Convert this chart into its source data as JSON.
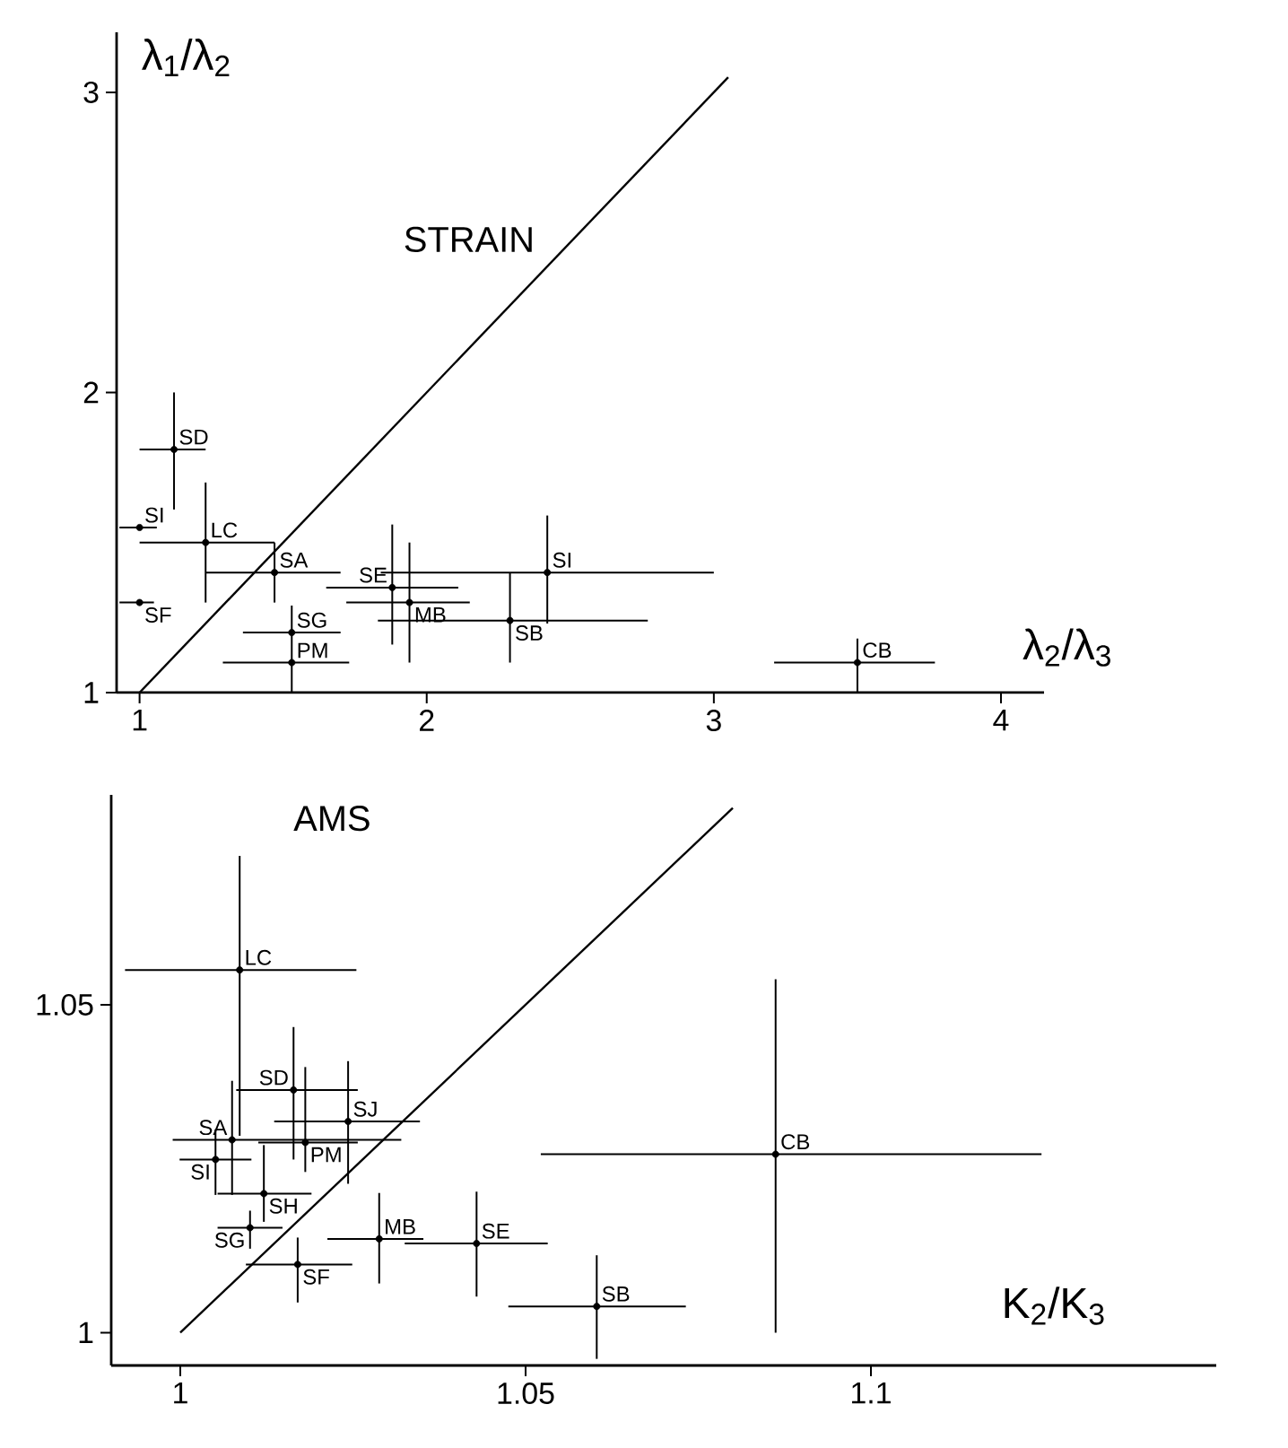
{
  "chart_data": [
    {
      "type": "scatter",
      "title": "STRAIN",
      "xlabel": "λ$_{2}$/λ$_{3}$",
      "ylabel": "λ$_{1}$/λ$_{2}$",
      "xlim": [
        0.92,
        4.15
      ],
      "ylim": [
        1,
        3.2
      ],
      "xticks": [
        1,
        2,
        3,
        4
      ],
      "yticks": [
        1,
        2,
        3
      ],
      "series": [
        {
          "type": "line",
          "marker": "none",
          "color": "#000000",
          "x": [
            1,
            3.05
          ],
          "values": [
            1,
            3.05
          ]
        },
        {
          "name": "SD",
          "marker": "circle",
          "color": "#000000",
          "x": [
            1.12
          ],
          "values": [
            1.81
          ],
          "xerrors": [
            [
              1.0,
              1.23
            ]
          ],
          "errors": [
            [
              1.61,
              2.0
            ]
          ]
        },
        {
          "name": "SI",
          "marker": "circle",
          "color": "#000000",
          "x": [
            1.0
          ],
          "values": [
            1.55
          ],
          "xerrors": [
            [
              0.93,
              1.06
            ]
          ],
          "errors": [
            null
          ]
        },
        {
          "name": "LC",
          "marker": "circle",
          "color": "#000000",
          "x": [
            1.23
          ],
          "values": [
            1.5
          ],
          "xerrors": [
            [
              1.0,
              1.47
            ]
          ],
          "errors": [
            [
              1.3,
              1.7
            ]
          ]
        },
        {
          "name": "SA",
          "marker": "circle",
          "color": "#000000",
          "x": [
            1.47
          ],
          "values": [
            1.4
          ],
          "xerrors": [
            [
              1.23,
              1.7
            ]
          ],
          "errors": [
            [
              1.3,
              1.5
            ]
          ]
        },
        {
          "name": "SF",
          "marker": "circle",
          "color": "#000000",
          "x": [
            1.0
          ],
          "values": [
            1.3
          ],
          "xerrors": [
            [
              0.93,
              1.05
            ]
          ],
          "errors": [
            null
          ]
        },
        {
          "name": "SE",
          "marker": "circle",
          "color": "#000000",
          "x": [
            1.88
          ],
          "values": [
            1.35
          ],
          "xerrors": [
            [
              1.65,
              2.11
            ]
          ],
          "errors": [
            [
              1.16,
              1.56
            ]
          ]
        },
        {
          "name": "MB",
          "marker": "circle",
          "color": "#000000",
          "x": [
            1.94
          ],
          "values": [
            1.3
          ],
          "xerrors": [
            [
              1.72,
              2.15
            ]
          ],
          "errors": [
            [
              1.1,
              1.5
            ]
          ]
        },
        {
          "name": "SI",
          "marker": "circle",
          "color": "#000000",
          "x": [
            2.42
          ],
          "values": [
            1.4
          ],
          "xerrors": [
            [
              1.84,
              3.0
            ]
          ],
          "errors": [
            [
              1.23,
              1.59
            ]
          ]
        },
        {
          "name": "SB",
          "marker": "circle",
          "color": "#000000",
          "x": [
            2.29
          ],
          "values": [
            1.24
          ],
          "xerrors": [
            [
              1.83,
              2.77
            ]
          ],
          "errors": [
            [
              1.1,
              1.4
            ]
          ]
        },
        {
          "name": "SG",
          "marker": "circle",
          "color": "#000000",
          "x": [
            1.53
          ],
          "values": [
            1.2
          ],
          "xerrors": [
            [
              1.36,
              1.7
            ]
          ],
          "errors": [
            [
              1.2,
              1.29
            ]
          ]
        },
        {
          "name": "PM",
          "marker": "circle",
          "color": "#000000",
          "x": [
            1.53
          ],
          "values": [
            1.1
          ],
          "xerrors": [
            [
              1.29,
              1.73
            ]
          ],
          "errors": [
            [
              1.0,
              1.2
            ]
          ]
        },
        {
          "name": "CB",
          "marker": "circle",
          "color": "#000000",
          "x": [
            3.5
          ],
          "values": [
            1.1
          ],
          "xerrors": [
            [
              3.21,
              3.77
            ]
          ],
          "errors": [
            [
              1.0,
              1.18
            ]
          ]
        }
      ]
    },
    {
      "type": "scatter",
      "title": "AMS",
      "xlabel": "K$_{2}$/K$_{3}$",
      "xlim": [
        0.99,
        1.15
      ],
      "ylim": [
        0.995,
        1.082
      ],
      "xticks": [
        1,
        1.05,
        1.1
      ],
      "yticks": [
        1,
        1.05
      ],
      "series": [
        {
          "type": "line",
          "marker": "none",
          "color": "#000000",
          "x": [
            1,
            1.08
          ],
          "values": [
            1,
            1.08
          ]
        },
        {
          "name": "LC",
          "marker": "circle",
          "color": "#000000",
          "x": [
            1.0086
          ],
          "values": [
            1.0553
          ],
          "xerrors": [
            [
              0.992,
              1.0255
            ]
          ],
          "errors": [
            [
              1.03,
              1.0727
            ]
          ]
        },
        {
          "name": "SD",
          "marker": "circle",
          "color": "#000000",
          "x": [
            1.0164
          ],
          "values": [
            1.037
          ],
          "xerrors": [
            [
              1.0081,
              1.0257
            ]
          ],
          "errors": [
            [
              1.0264,
              1.0466
            ]
          ]
        },
        {
          "name": "SJ",
          "marker": "circle",
          "color": "#000000",
          "x": [
            1.0243
          ],
          "values": [
            1.0322
          ],
          "xerrors": [
            [
              1.0136,
              1.0347
            ]
          ],
          "errors": [
            [
              1.0227,
              1.0414
            ]
          ]
        },
        {
          "name": "SA",
          "marker": "circle",
          "color": "#000000",
          "x": [
            1.0075
          ],
          "values": [
            1.0294
          ],
          "xerrors": [
            [
              0.9989,
              1.032
            ]
          ],
          "errors": [
            [
              1.021,
              1.0384
            ]
          ]
        },
        {
          "name": "PM",
          "marker": "circle",
          "color": "#000000",
          "x": [
            1.0181
          ],
          "values": [
            1.029
          ],
          "xerrors": [
            [
              1.0113,
              1.0257
            ]
          ],
          "errors": [
            [
              1.0245,
              1.0405
            ]
          ]
        },
        {
          "name": "SI",
          "marker": "circle",
          "color": "#000000",
          "x": [
            1.0051
          ],
          "values": [
            1.0264
          ],
          "xerrors": [
            [
              0.9999,
              1.0103
            ]
          ],
          "errors": [
            [
              1.021,
              1.031
            ]
          ]
        },
        {
          "name": "SH",
          "marker": "circle",
          "color": "#000000",
          "x": [
            1.0121
          ],
          "values": [
            1.0212
          ],
          "xerrors": [
            [
              1.0054,
              1.019
            ]
          ],
          "errors": [
            [
              1.0169,
              1.0286
            ]
          ]
        },
        {
          "name": "SG",
          "marker": "circle",
          "color": "#000000",
          "x": [
            1.0101
          ],
          "values": [
            1.016
          ],
          "xerrors": [
            [
              1.0054,
              1.0148
            ]
          ],
          "errors": [
            [
              1.0128,
              1.0186
            ]
          ]
        },
        {
          "name": "SF",
          "marker": "circle",
          "color": "#000000",
          "x": [
            1.017
          ],
          "values": [
            1.0104
          ],
          "xerrors": [
            [
              1.0095,
              1.0249
            ]
          ],
          "errors": [
            [
              1.0046,
              1.0145
            ]
          ]
        },
        {
          "name": "MB",
          "marker": "circle",
          "color": "#000000",
          "x": [
            1.0288
          ],
          "values": [
            1.0143
          ],
          "xerrors": [
            [
              1.0213,
              1.0352
            ]
          ],
          "errors": [
            [
              1.0075,
              1.0213
            ]
          ]
        },
        {
          "name": "SE",
          "marker": "circle",
          "color": "#000000",
          "x": [
            1.0429
          ],
          "values": [
            1.0136
          ],
          "xerrors": [
            [
              1.0325,
              1.0532
            ]
          ],
          "errors": [
            [
              1.0055,
              1.0215
            ]
          ]
        },
        {
          "name": "SB",
          "marker": "circle",
          "color": "#000000",
          "x": [
            1.0603
          ],
          "values": [
            1.004
          ],
          "xerrors": [
            [
              1.0475,
              1.0732
            ]
          ],
          "errors": [
            [
              0.996,
              1.0118
            ]
          ]
        },
        {
          "name": "CB",
          "marker": "circle",
          "color": "#000000",
          "x": [
            1.0862
          ],
          "values": [
            1.0272
          ],
          "xerrors": [
            [
              1.0522,
              1.1247
            ]
          ],
          "errors": [
            [
              1.0,
              1.0539
            ]
          ]
        }
      ]
    }
  ]
}
